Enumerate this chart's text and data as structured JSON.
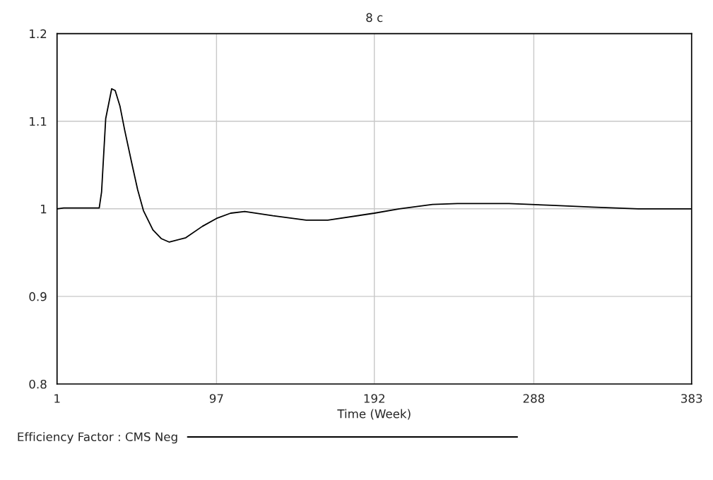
{
  "chart_data": {
    "type": "line",
    "title": "8 c",
    "xlabel": "Time (Week)",
    "xlim": [
      1,
      383
    ],
    "xticks": [
      1,
      97,
      192,
      288,
      383
    ],
    "ylim": [
      0.8,
      1.2
    ],
    "yticks": [
      0.8,
      0.9,
      1,
      1.1,
      1.2
    ],
    "grid": true,
    "legend": "bottom",
    "line_style": "solid",
    "marker": "none",
    "series": [
      {
        "name": "Efficiency Factor : CMS Neg",
        "color": "#000000",
        "x": [
          1,
          5,
          26.4,
          27.8,
          30.3,
          33.9,
          36,
          38.9,
          41.7,
          46,
          49.5,
          53,
          58.7,
          63.7,
          68.6,
          78.5,
          88.5,
          97,
          105.5,
          114,
          131,
          151,
          164,
          192,
          207,
          227,
          242,
          273,
          299,
          323,
          351,
          383
        ],
        "values": [
          1.0,
          1.001,
          1.001,
          1.019,
          1.103,
          1.137,
          1.135,
          1.117,
          1.09,
          1.052,
          1.022,
          0.998,
          0.976,
          0.966,
          0.962,
          0.967,
          0.98,
          0.989,
          0.995,
          0.997,
          0.992,
          0.987,
          0.987,
          0.995,
          1.0,
          1.005,
          1.006,
          1.006,
          1.004,
          1.002,
          1.0,
          1.0
        ]
      }
    ]
  }
}
